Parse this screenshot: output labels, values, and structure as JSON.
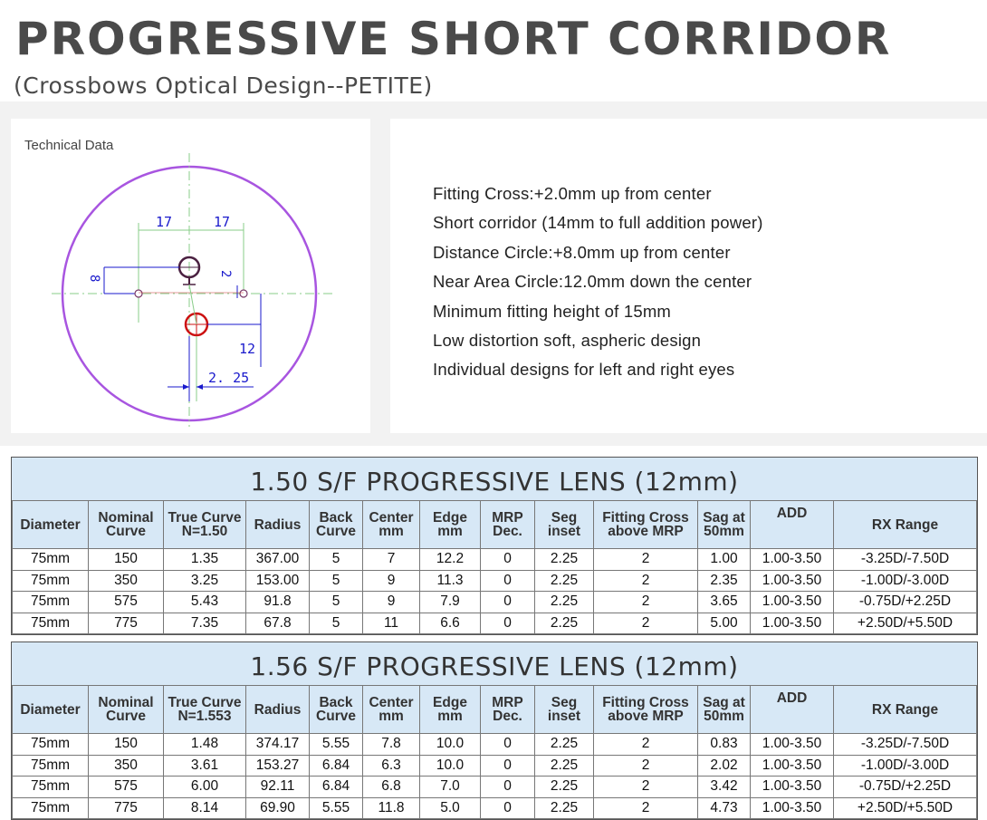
{
  "header": {
    "title": "PROGRESSIVE SHORT CORRIDOR",
    "subtitle": "(Crossbows Optical Design--PETITE)"
  },
  "diagram": {
    "label": "Technical Data",
    "dims": {
      "left_17": "17",
      "right_17": "17",
      "dim_8": "8",
      "dim_2": "2",
      "dim_12": "12",
      "dim_225": "2. 25"
    },
    "colors": {
      "circle": "#a855e0",
      "cross": "#3a6b3a",
      "near": "#cc1111",
      "dimension": "#1a1acc",
      "axis": "#88cc88"
    }
  },
  "specs": [
    "Fitting Cross:+2.0mm up from center",
    "Short corridor (14mm to full addition power)",
    "Distance Circle:+8.0mm up from center",
    "Near Area Circle:12.0mm down the center",
    "Minimum fitting height of 15mm",
    "Low distortion soft, aspheric design",
    "Individual designs for left and right eyes"
  ],
  "columns": [
    [
      "Diameter"
    ],
    [
      "Nominal",
      "Curve"
    ],
    [
      "True Curve",
      "N=1.50"
    ],
    [
      "Radius"
    ],
    [
      "Back",
      "Curve"
    ],
    [
      "Center",
      "mm"
    ],
    [
      "Edge",
      "mm"
    ],
    [
      "MRP",
      "Dec."
    ],
    [
      "Seg",
      "inset"
    ],
    [
      "Fitting Cross",
      "above MRP"
    ],
    [
      "Sag at",
      "50mm"
    ],
    [
      "ADD"
    ],
    [
      "RX Range"
    ]
  ],
  "table1": {
    "title": "1.50 S/F PROGRESSIVE LENS (12mm)",
    "true_curve_header": [
      "True Curve",
      "N=1.50"
    ],
    "rows": [
      [
        "75mm",
        "150",
        "1.35",
        "367.00",
        "5",
        "7",
        "12.2",
        "0",
        "2.25",
        "2",
        "1.00",
        "1.00-3.50",
        "-3.25D/-7.50D"
      ],
      [
        "75mm",
        "350",
        "3.25",
        "153.00",
        "5",
        "9",
        "11.3",
        "0",
        "2.25",
        "2",
        "2.35",
        "1.00-3.50",
        "-1.00D/-3.00D"
      ],
      [
        "75mm",
        "575",
        "5.43",
        "91.8",
        "5",
        "9",
        "7.9",
        "0",
        "2.25",
        "2",
        "3.65",
        "1.00-3.50",
        "-0.75D/+2.25D"
      ],
      [
        "75mm",
        "775",
        "7.35",
        "67.8",
        "5",
        "11",
        "6.6",
        "0",
        "2.25",
        "2",
        "5.00",
        "1.00-3.50",
        "+2.50D/+5.50D"
      ]
    ]
  },
  "table2": {
    "title": "1.56 S/F PROGRESSIVE LENS (12mm)",
    "true_curve_header": [
      "True Curve",
      "N=1.553"
    ],
    "rows": [
      [
        "75mm",
        "150",
        "1.48",
        "374.17",
        "5.55",
        "7.8",
        "10.0",
        "0",
        "2.25",
        "2",
        "0.83",
        "1.00-3.50",
        "-3.25D/-7.50D"
      ],
      [
        "75mm",
        "350",
        "3.61",
        "153.27",
        "6.84",
        "6.3",
        "10.0",
        "0",
        "2.25",
        "2",
        "2.02",
        "1.00-3.50",
        "-1.00D/-3.00D"
      ],
      [
        "75mm",
        "575",
        "6.00",
        "92.11",
        "6.84",
        "6.8",
        "7.0",
        "0",
        "2.25",
        "2",
        "3.42",
        "1.00-3.50",
        "-0.75D/+2.25D"
      ],
      [
        "75mm",
        "775",
        "8.14",
        "69.90",
        "5.55",
        "11.8",
        "5.0",
        "0",
        "2.25",
        "2",
        "4.73",
        "1.00-3.50",
        "+2.50D/+5.50D"
      ]
    ]
  }
}
